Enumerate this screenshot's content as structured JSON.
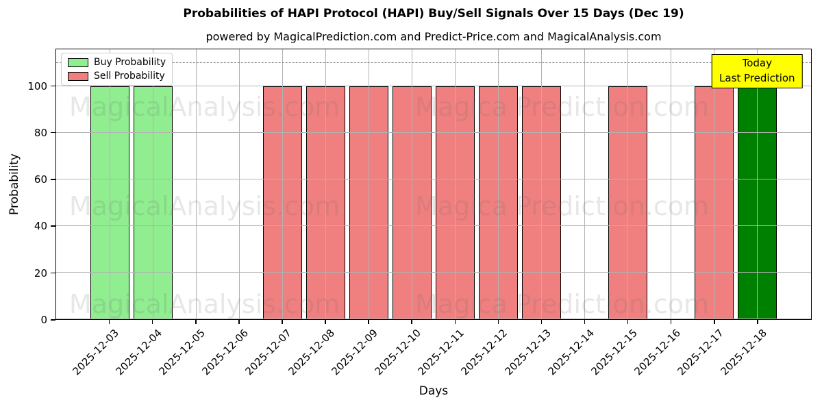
{
  "title": "Probabilities of HAPI Protocol (HAPI) Buy/Sell Signals Over 15 Days (Dec 19)",
  "subtitle": "powered by MagicalPrediction.com and Predict-Price.com and MagicalAnalysis.com",
  "axes": {
    "xlabel": "Days",
    "ylabel": "Probability",
    "yticks": [
      0,
      20,
      40,
      60,
      80,
      100
    ],
    "ylim": [
      0,
      116
    ],
    "grid": true
  },
  "colors": {
    "buy": "#90ee90",
    "sell": "#f08080",
    "today": "#008000",
    "annotation_bg": "#ffff00",
    "grid": "#b2b2b2",
    "threshold": "#7f7f7f",
    "bar_edge": "#000000"
  },
  "legend": {
    "position": "upper-left",
    "items": [
      {
        "label": "Buy Probability",
        "color_key": "buy"
      },
      {
        "label": "Sell Probability",
        "color_key": "sell"
      }
    ]
  },
  "annotation": {
    "line1": "Today",
    "line2": "Last Prediction",
    "threshold_y": 110,
    "attach_category": "2025-12-18"
  },
  "watermark": {
    "left_text": "MagicalAnalysis.com",
    "right_text": "Magica Prediction.com",
    "rows": 3
  },
  "chart_data": {
    "type": "bar",
    "title": "Probabilities of HAPI Protocol (HAPI) Buy/Sell Signals Over 15 Days (Dec 19)",
    "xlabel": "Days",
    "ylabel": "Probability",
    "ylim": [
      0,
      116
    ],
    "grid": true,
    "legend_position": "upper-left",
    "categories": [
      "2025-12-03",
      "2025-12-04",
      "2025-12-05",
      "2025-12-06",
      "2025-12-07",
      "2025-12-08",
      "2025-12-09",
      "2025-12-10",
      "2025-12-11",
      "2025-12-12",
      "2025-12-13",
      "2025-12-14",
      "2025-12-15",
      "2025-12-16",
      "2025-12-17",
      "2025-12-18"
    ],
    "series": [
      {
        "name": "Buy Probability",
        "color_key": "buy",
        "values": [
          100,
          100,
          null,
          null,
          null,
          null,
          null,
          null,
          null,
          null,
          null,
          null,
          null,
          null,
          null,
          null
        ]
      },
      {
        "name": "Sell Probability",
        "color_key": "sell",
        "values": [
          null,
          null,
          null,
          null,
          100,
          100,
          100,
          100,
          100,
          100,
          100,
          null,
          100,
          null,
          100,
          null
        ]
      },
      {
        "name": "Today Last Prediction",
        "color_key": "today",
        "values": [
          null,
          null,
          null,
          null,
          null,
          null,
          null,
          null,
          null,
          null,
          null,
          null,
          null,
          null,
          null,
          100
        ]
      }
    ]
  }
}
